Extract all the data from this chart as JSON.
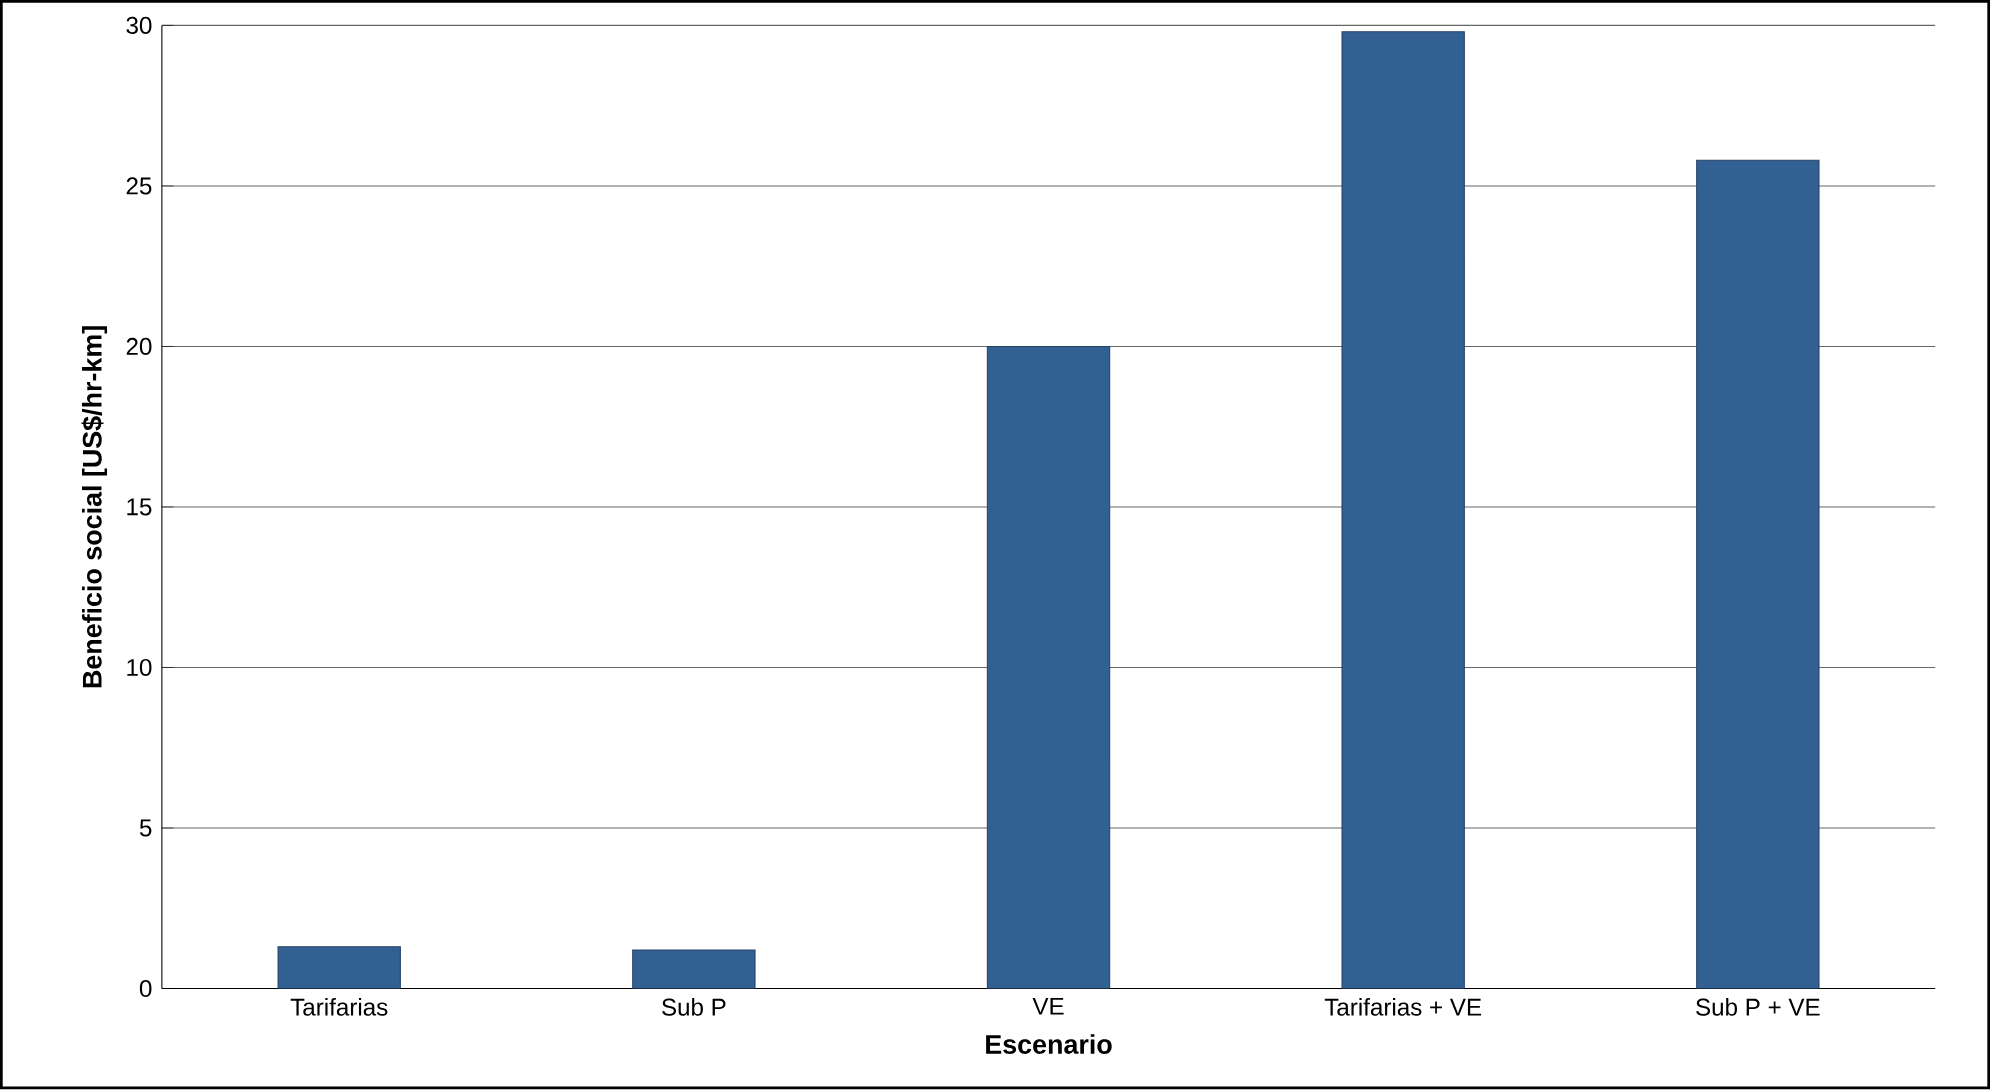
{
  "chart_data": {
    "type": "bar",
    "xlabel": "Escenario",
    "ylabel": "Beneficio social [US$/hr-km]",
    "categories": [
      "Tarifarias",
      "Sub P",
      "VE",
      "Tarifarias + VE",
      "Sub P + VE"
    ],
    "values": [
      1.3,
      1.2,
      20,
      29.8,
      25.8
    ],
    "color": "#336092",
    "ylim": [
      0,
      30
    ],
    "yticks": [
      0,
      5,
      10,
      15,
      20,
      25,
      30
    ],
    "grid": "y"
  }
}
